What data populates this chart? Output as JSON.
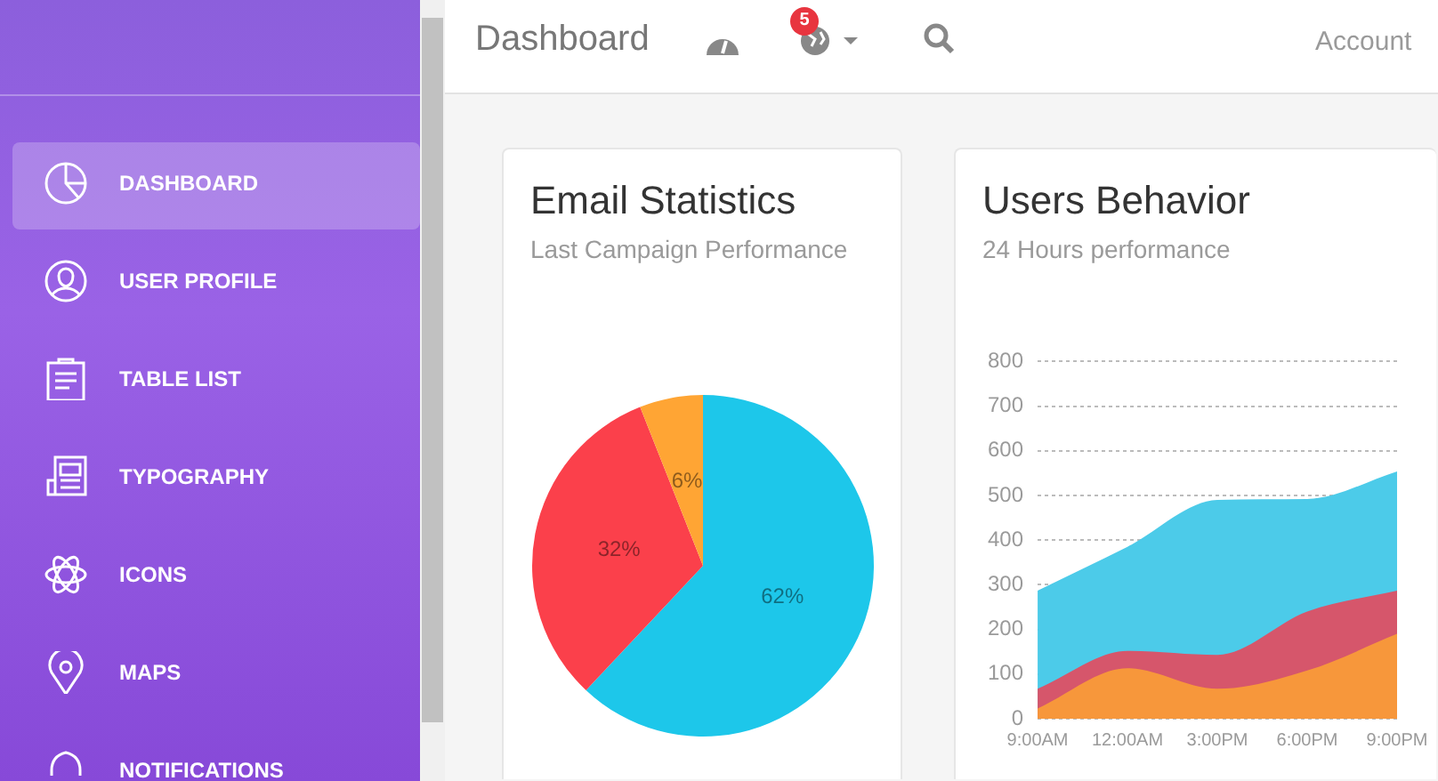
{
  "chart_data": [
    {
      "type": "other",
      "annotations": [
        "DASHBOARD",
        "USER PROFILE",
        "TABLE LIST",
        "TYPOGRAPHY",
        "ICONS",
        "MAPS",
        "NOTIFICATIONS"
      ]
    },
    {
      "type": "other",
      "title": "Dashboard",
      "annotations": [
        "5",
        "Account"
      ]
    },
    {
      "type": "pie",
      "title": "Email Statistics",
      "subtitle": "Last Campaign Performance",
      "categories": [
        null,
        null,
        null
      ],
      "values": [
        62,
        32,
        6
      ],
      "colors": [
        "#1dc7ea",
        "#fb404b",
        "#ffa534"
      ],
      "value_labels": [
        "62%",
        "32%",
        "6%"
      ]
    },
    {
      "type": "area",
      "title": "Users Behavior",
      "subtitle": "24 Hours performance",
      "categories": [
        "9:00AM",
        "12:00AM",
        "3:00PM",
        "6:00PM",
        "9:00PM"
      ],
      "ylim": [
        0,
        800
      ],
      "yticks": [
        0,
        100,
        200,
        300,
        400,
        500,
        600,
        700,
        800
      ],
      "grid": "y",
      "series": [
        {
          "color": "#4ccbe9",
          "values": [
            287,
            385,
            490,
            492,
            554
          ]
        },
        {
          "color": "#d6566b",
          "values": [
            67,
            152,
            143,
            240,
            287
          ]
        },
        {
          "color": "#f7973b",
          "values": [
            23,
            113,
            67,
            108,
            190
          ]
        }
      ]
    }
  ]
}
